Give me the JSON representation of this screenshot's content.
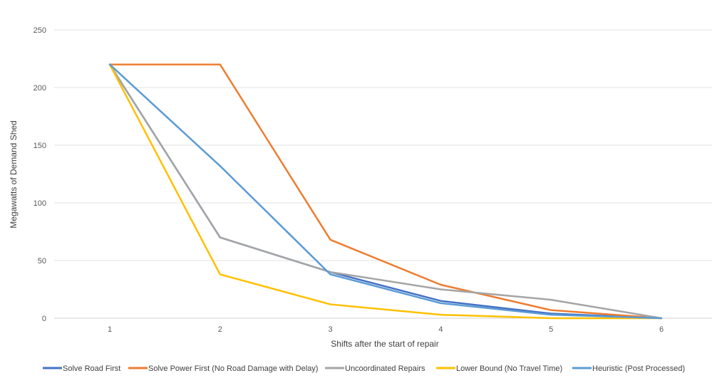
{
  "chart_data": {
    "type": "line",
    "title": "",
    "xlabel": "Shifts after the start of repair",
    "ylabel": "Megawatts of Demand Shed",
    "x": [
      1,
      2,
      3,
      4,
      5,
      6
    ],
    "ylim": [
      0,
      250
    ],
    "yticks": [
      0,
      50,
      100,
      150,
      200,
      250
    ],
    "grid": "horizontal",
    "legend": "bottom",
    "series": [
      {
        "name": "Solve Road First",
        "color": "#4472C4",
        "values": [
          220,
          70,
          40,
          15,
          4,
          0
        ]
      },
      {
        "name": "Solve Power First (No Road Damage with Delay)",
        "color": "#ED7D31",
        "values": [
          220,
          220,
          68,
          29,
          7,
          0
        ]
      },
      {
        "name": "Uncoordinated Repairs",
        "color": "#A5A5A5",
        "values": [
          220,
          70,
          40,
          25,
          16,
          0
        ]
      },
      {
        "name": "Lower Bound (No Travel Time)",
        "color": "#FFC000",
        "values": [
          220,
          38,
          12,
          3,
          0,
          0
        ]
      },
      {
        "name": "Heuristic (Post Processed)",
        "color": "#5B9BD5",
        "values": [
          220,
          132,
          38,
          13,
          3,
          0
        ]
      }
    ]
  }
}
